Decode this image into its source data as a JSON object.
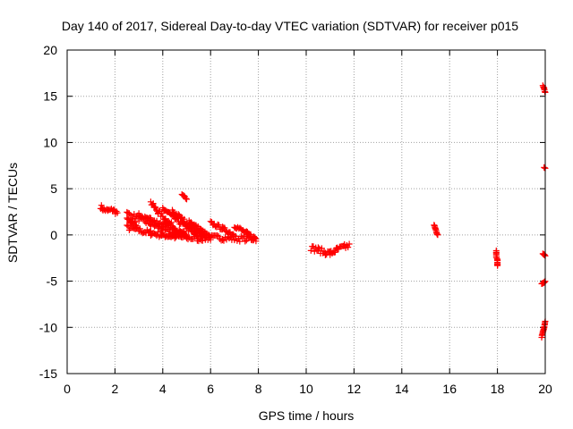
{
  "chart_data": {
    "type": "scatter",
    "title": "Day 140 of 2017, Sidereal Day-to-day VTEC variation (SDTVAR) for receiver p015",
    "xlabel": "GPS time / hours",
    "ylabel": "SDTVAR / TECUs",
    "xlim": [
      0,
      20
    ],
    "ylim": [
      -15,
      20
    ],
    "xticks": [
      0,
      2,
      4,
      6,
      8,
      10,
      12,
      14,
      16,
      18,
      20
    ],
    "yticks": [
      -15,
      -10,
      -5,
      0,
      5,
      10,
      15,
      20
    ],
    "xtick_labels": [
      "0",
      "2",
      "4",
      "6",
      "8",
      "10",
      "12",
      "14",
      "16",
      "18",
      "20"
    ],
    "ytick_labels": [
      "-15",
      "-10",
      "-5",
      "0",
      "5",
      "10",
      "15",
      "20"
    ],
    "grid": true,
    "marker": "plus",
    "marker_color": "#ff0000",
    "series": [
      {
        "name": "SDTVAR",
        "segments": [
          {
            "x": [
              1.4,
              1.5,
              1.7,
              1.9,
              2.1
            ],
            "y": [
              3.1,
              2.8,
              2.6,
              2.7,
              2.4
            ],
            "spread": 0.5
          },
          {
            "x": [
              2.5,
              3.0,
              3.5,
              4.0,
              4.5,
              5.0,
              5.5,
              6.0,
              6.5,
              7.0,
              7.5,
              7.9
            ],
            "y": [
              0.8,
              0.5,
              0.2,
              0.0,
              -0.2,
              -0.3,
              -0.4,
              -0.3,
              -0.3,
              -0.4,
              -0.4,
              -0.4
            ],
            "spread": 0.6
          },
          {
            "x": [
              2.5,
              3.0,
              3.5,
              4.0,
              4.5
            ],
            "y": [
              2.3,
              1.8,
              1.2,
              0.6,
              0.0
            ],
            "spread": 0.6
          },
          {
            "x": [
              3.0,
              3.5,
              4.0,
              4.5,
              5.0
            ],
            "y": [
              2.1,
              1.7,
              1.1,
              0.5,
              0.0
            ],
            "spread": 0.5
          },
          {
            "x": [
              3.5,
              3.8,
              4.2,
              4.6,
              5.0
            ],
            "y": [
              3.5,
              2.5,
              1.5,
              0.5,
              -0.2
            ],
            "spread": 0.5
          },
          {
            "x": [
              4.0,
              4.5,
              5.0,
              5.5
            ],
            "y": [
              2.9,
              1.8,
              0.8,
              -0.3
            ],
            "spread": 0.5
          },
          {
            "x": [
              4.4,
              4.9,
              5.4,
              5.8
            ],
            "y": [
              2.6,
              1.5,
              0.5,
              -0.4
            ],
            "spread": 0.5
          },
          {
            "x": [
              4.8,
              5.0
            ],
            "y": [
              4.3,
              4.0
            ],
            "spread": 0.3
          },
          {
            "x": [
              5.1,
              5.6,
              6.0
            ],
            "y": [
              1.5,
              0.5,
              -0.3
            ],
            "spread": 0.4
          },
          {
            "x": [
              6.0,
              6.5,
              7.0
            ],
            "y": [
              1.3,
              0.7,
              0.0
            ],
            "spread": 0.4
          },
          {
            "x": [
              7.0,
              7.5,
              7.9
            ],
            "y": [
              1.0,
              0.2,
              -0.4
            ],
            "spread": 0.4
          },
          {
            "x": [
              2.5,
              2.7,
              2.9
            ],
            "y": [
              1.8,
              1.5,
              1.2
            ],
            "spread": 0.5
          },
          {
            "x": [
              10.2,
              10.5,
              10.8,
              11.0,
              11.3,
              11.6,
              11.8
            ],
            "y": [
              -1.4,
              -1.6,
              -1.9,
              -2.0,
              -1.6,
              -1.3,
              -1.2
            ],
            "spread": 0.6
          },
          {
            "x": [
              15.35,
              15.4,
              15.45,
              15.5
            ],
            "y": [
              1.1,
              0.7,
              0.3,
              0.0
            ],
            "spread": 0.1
          },
          {
            "x": [
              17.95,
              17.95,
              18.0,
              18.0,
              18.0
            ],
            "y": [
              -1.8,
              -2.3,
              -2.7,
              -3.1,
              -3.4
            ],
            "spread": 0.3
          },
          {
            "x": [
              19.9,
              19.95,
              20.0
            ],
            "y": [
              16.2,
              15.8,
              15.4
            ],
            "spread": 0.2
          },
          {
            "x": [
              19.95,
              20.0
            ],
            "y": [
              7.3,
              7.2
            ],
            "spread": 0.1
          },
          {
            "x": [
              19.9,
              19.95,
              20.0
            ],
            "y": [
              -2.0,
              -2.1,
              -2.3
            ],
            "spread": 0.1
          },
          {
            "x": [
              19.85,
              19.9,
              19.95,
              20.0
            ],
            "y": [
              -5.3,
              -5.2,
              -5.1,
              -5.0
            ],
            "spread": 0.1
          },
          {
            "x": [
              19.85,
              19.9,
              19.95,
              20.0
            ],
            "y": [
              -11.0,
              -10.5,
              -10.0,
              -9.4
            ],
            "spread": 0.2
          }
        ]
      }
    ]
  }
}
